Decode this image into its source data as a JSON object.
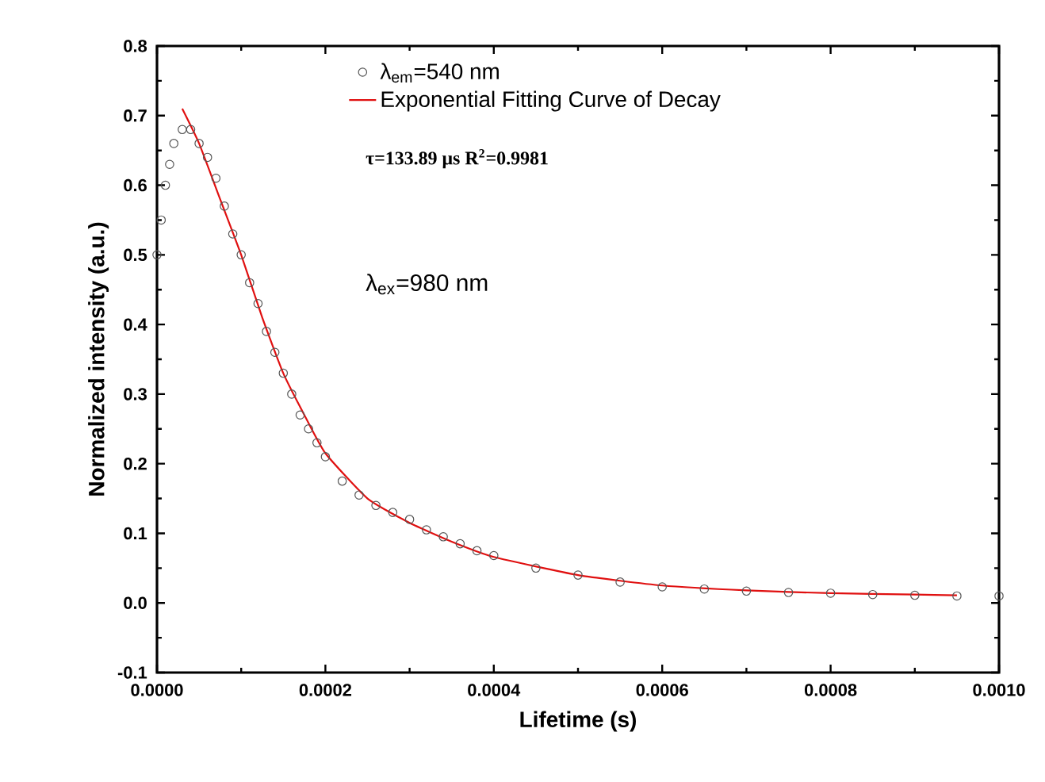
{
  "chart_data": {
    "type": "scatter",
    "xlabel": "Lifetime (s)",
    "ylabel": "Normalized intensity (a.u.)",
    "xlim": [
      0,
      0.001
    ],
    "ylim": [
      -0.1,
      0.8
    ],
    "xticks": [
      {
        "value": 0,
        "label": "0.0000"
      },
      {
        "value": 0.0002,
        "label": "0.0002"
      },
      {
        "value": 0.0004,
        "label": "0.0004"
      },
      {
        "value": 0.0006,
        "label": "0.0006"
      },
      {
        "value": 0.0008,
        "label": "0.0008"
      },
      {
        "value": 0.001,
        "label": "0.0010"
      }
    ],
    "yticks": [
      -0.1,
      {
        "value": 0,
        "label": "0.0"
      },
      0.1,
      0.2,
      0.3,
      0.4,
      0.5,
      0.6,
      0.7,
      0.8
    ],
    "legend": "top",
    "grid": false,
    "annotations": [
      "τ=133.89 μs  R$^{2}$=0.9981",
      "λ$_{ex}$=980 nm"
    ],
    "series": [
      {
        "name": "λ$_{em}$=540 nm",
        "color": "#555555",
        "marker": "circle",
        "x": [
          0,
          5e-06,
          1e-05,
          1.5e-05,
          2e-05,
          3e-05,
          4e-05,
          5e-05,
          6e-05,
          7e-05,
          8e-05,
          9e-05,
          0.0001,
          0.00011,
          0.00012,
          0.00013,
          0.00014,
          0.00015,
          0.00016,
          0.00017,
          0.00018,
          0.00019,
          0.0002,
          0.00022,
          0.00024,
          0.00026,
          0.00028,
          0.0003,
          0.00032,
          0.00034,
          0.00036,
          0.00038,
          0.0004,
          0.00045,
          0.0005,
          0.00055,
          0.0006,
          0.00065,
          0.0007,
          0.00075,
          0.0008,
          0.00085,
          0.0009,
          0.00095,
          0.001
        ],
        "values": [
          0.5,
          0.55,
          0.6,
          0.63,
          0.66,
          0.68,
          0.68,
          0.66,
          0.64,
          0.61,
          0.57,
          0.53,
          0.5,
          0.46,
          0.43,
          0.39,
          0.36,
          0.33,
          0.3,
          0.27,
          0.25,
          0.23,
          0.21,
          0.175,
          0.155,
          0.14,
          0.13,
          0.12,
          0.105,
          0.095,
          0.085,
          0.075,
          0.068,
          0.05,
          0.04,
          0.03,
          0.023,
          0.02,
          0.017,
          0.015,
          0.014,
          0.012,
          0.011,
          0.01,
          0.01
        ]
      },
      {
        "name": "Exponential Fitting Curve of Decay",
        "type": "line",
        "color": "#e01010",
        "marker": "none",
        "x": [
          3e-05,
          5e-05,
          7.5e-05,
          0.0001,
          0.000125,
          0.00015,
          0.000175,
          0.0002,
          0.00025,
          0.0003,
          0.00035,
          0.0004,
          0.0005,
          0.0006,
          0.0007,
          0.0008,
          0.0009,
          0.00095
        ],
        "values": [
          0.71,
          0.66,
          0.58,
          0.5,
          0.41,
          0.33,
          0.27,
          0.215,
          0.15,
          0.115,
          0.088,
          0.066,
          0.04,
          0.025,
          0.018,
          0.014,
          0.012,
          0.011
        ]
      }
    ]
  }
}
